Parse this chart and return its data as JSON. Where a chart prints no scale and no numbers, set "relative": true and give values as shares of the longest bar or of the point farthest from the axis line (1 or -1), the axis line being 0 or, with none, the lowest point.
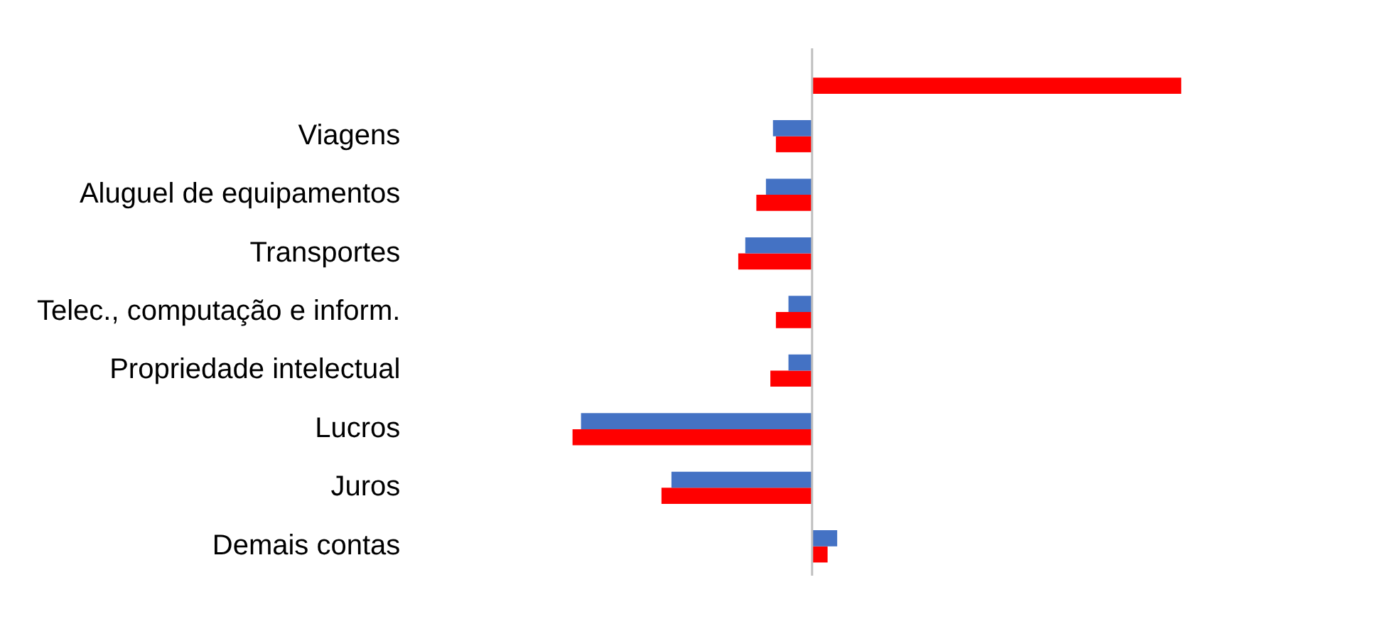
{
  "chart_data": {
    "type": "bar",
    "orientation": "horizontal",
    "relative": true,
    "legend": false,
    "categories": [
      null,
      "Viagens",
      "Aluguel de equipamentos",
      "Transportes",
      "Telec., computação e inform.",
      "Propriedade intelectual",
      "Lucros",
      "Juros",
      "Demais contas"
    ],
    "series": [
      {
        "color": "#4472c4",
        "values": [
          null,
          -0.106,
          -0.125,
          -0.181,
          -0.064,
          -0.064,
          -0.626,
          -0.381,
          0.068
        ]
      },
      {
        "color": "#ff0000",
        "values": [
          1,
          -0.098,
          -0.151,
          -0.2,
          -0.098,
          -0.113,
          -0.649,
          -0.408,
          0.042
        ]
      }
    ]
  }
}
